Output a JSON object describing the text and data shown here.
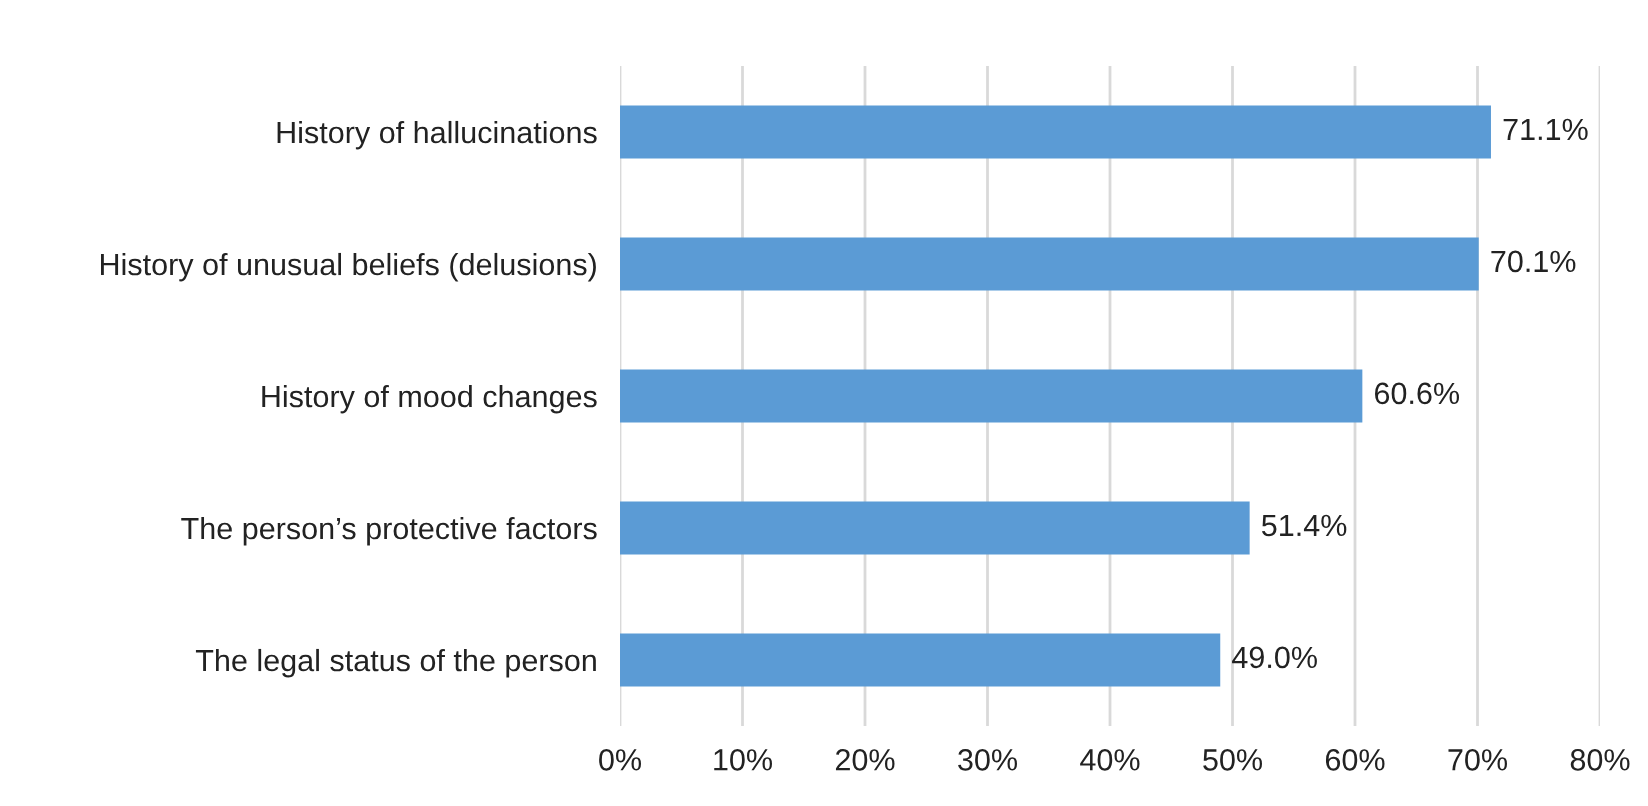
{
  "chart_data": {
    "type": "bar",
    "orientation": "horizontal",
    "categories": [
      "History of hallucinations",
      "History of unusual beliefs (delusions)",
      "History of mood changes",
      "The person’s protective factors",
      "The legal status of the person"
    ],
    "values": [
      71.1,
      70.1,
      60.6,
      51.4,
      49.0
    ],
    "value_labels": [
      "71.1%",
      "70.1%",
      "60.6%",
      "51.4%",
      "49.0%"
    ],
    "color": "#5b9bd5",
    "xlim": [
      0,
      80
    ],
    "xticks": [
      {
        "value": 0,
        "label": "0%"
      },
      {
        "value": 10,
        "label": "10%"
      },
      {
        "value": 20,
        "label": "20%"
      },
      {
        "value": 30,
        "label": "30%"
      },
      {
        "value": 40,
        "label": "40%"
      },
      {
        "value": 50,
        "label": "50%"
      },
      {
        "value": 60,
        "label": "60%"
      },
      {
        "value": 70,
        "label": "70%"
      },
      {
        "value": 80,
        "label": "80%"
      }
    ],
    "grid": "x"
  }
}
